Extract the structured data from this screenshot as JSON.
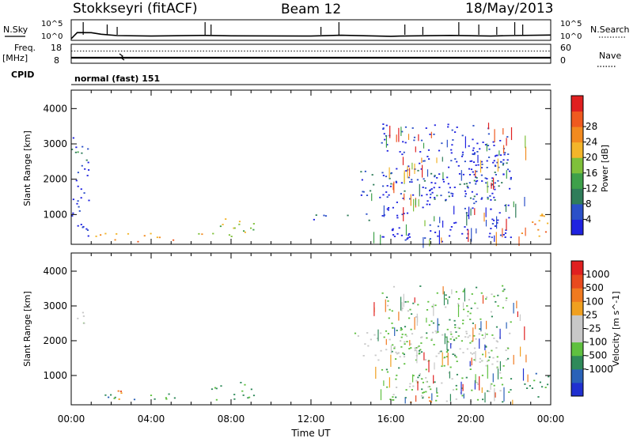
{
  "header": {
    "station": "Stokkseyri (fitACF)",
    "beam": "Beam 12",
    "date": "18/May/2013"
  },
  "side_labels": {
    "nsky": "N.Sky",
    "nsearch": "N.Search",
    "freq": "Freq.",
    "freq_unit": "[MHz]",
    "nave": "Nave",
    "cpid": "CPID",
    "nsky_ticks": [
      "10^5",
      "10^0"
    ],
    "nsearch_ticks": [
      "10^5",
      "10^0"
    ],
    "freq_ticks": [
      "18",
      "8"
    ],
    "nave_ticks": [
      "60",
      "0"
    ]
  },
  "cpid_text": "normal (fast) 151",
  "x_axis": {
    "label": "Time UT",
    "ticks": [
      "00:00",
      "04:00",
      "08:00",
      "12:00",
      "16:00",
      "20:00",
      "00:00"
    ],
    "tick_hours": [
      0,
      4,
      8,
      12,
      16,
      20,
      24
    ]
  },
  "panels": {
    "power_ylabel": "Slant Range [km]",
    "velocity_ylabel": "Slant Range [km]",
    "yticks": [
      "1000",
      "2000",
      "3000",
      "4000"
    ]
  },
  "chart_data": [
    {
      "type": "line",
      "name": "noise-panel",
      "x_range_hours": [
        0,
        24
      ],
      "series": [
        {
          "name": "N.Sky",
          "x": [
            0,
            0.3,
            1.0,
            1.5,
            2.3,
            4.0,
            6.7,
            8.0,
            12.0,
            13.5,
            16.0,
            16.5,
            19.0,
            21.0,
            22.0,
            24.0
          ],
          "y": [
            1,
            60,
            55,
            20,
            8,
            6,
            9,
            7,
            6,
            10,
            5,
            6,
            9,
            6,
            8,
            12
          ]
        }
      ]
    },
    {
      "type": "line",
      "name": "freq-nave-panel",
      "x_range_hours": [
        0,
        24
      ],
      "series": [
        {
          "name": "Freq",
          "x": [
            0,
            24
          ],
          "y": [
            10.5,
            10.5
          ]
        },
        {
          "name": "Nave",
          "x": [
            0,
            24
          ],
          "y": [
            40,
            40
          ]
        }
      ]
    },
    {
      "type": "heatmap",
      "name": "power",
      "x_range_hours": [
        0,
        24
      ],
      "ylim": [
        180,
        4500
      ],
      "colorbar": {
        "label": "Power [dB]",
        "ticks": [
          "4",
          "8",
          "12",
          "16",
          "20",
          "24",
          "28"
        ],
        "colors": [
          "#1f22e0",
          "#2b50c8",
          "#2f7d5a",
          "#3ea04a",
          "#7fc03a",
          "#f3b52a",
          "#f28a1f",
          "#ef5a1f",
          "#e02020"
        ]
      },
      "regions": [
        {
          "t0": 0.0,
          "t1": 0.9,
          "r0": 2450,
          "r1": 2900,
          "level": 2
        },
        {
          "t0": 0.0,
          "t1": 0.9,
          "r0": 250,
          "r1": 3200,
          "level": 0
        },
        {
          "t0": 1.2,
          "t1": 5.5,
          "r0": 250,
          "r1": 500,
          "level": 6
        },
        {
          "t0": 5.8,
          "t1": 6.6,
          "r0": 250,
          "r1": 500,
          "level": 5
        },
        {
          "t0": 7.0,
          "t1": 9.2,
          "r0": 300,
          "r1": 900,
          "level": 4
        },
        {
          "t0": 12.0,
          "t1": 15.0,
          "r0": 850,
          "r1": 1050,
          "level": 1
        },
        {
          "t0": 14.0,
          "t1": 18.5,
          "r0": 1500,
          "r1": 2300,
          "level": 1
        },
        {
          "t0": 16.5,
          "t1": 18.0,
          "r0": 250,
          "r1": 400,
          "level": 1
        },
        {
          "t0": 18.0,
          "t1": 21.5,
          "r0": 1400,
          "r1": 2000,
          "level": 2
        },
        {
          "t0": 15.5,
          "t1": 22.0,
          "r0": 250,
          "r1": 3600,
          "level": 0
        },
        {
          "t0": 20.0,
          "t1": 22.0,
          "r0": 1800,
          "r1": 2900,
          "level": 1
        },
        {
          "t0": 22.5,
          "t1": 24.0,
          "r0": 400,
          "r1": 1100,
          "level": 6
        }
      ]
    },
    {
      "type": "heatmap",
      "name": "velocity",
      "x_range_hours": [
        0,
        24
      ],
      "ylim": [
        180,
        4500
      ],
      "colorbar": {
        "label": "Velocity [m s^-1]",
        "ticks": [
          "1000",
          "500",
          "100",
          "25",
          "-25",
          "-100",
          "-500",
          "-1000"
        ],
        "colors": [
          "#2030d0",
          "#2a62b8",
          "#2f8a5a",
          "#5fc040",
          "#c8c8c8",
          "#c8c8c8",
          "#f0a020",
          "#f07a20",
          "#e84a1e",
          "#e02020"
        ]
      },
      "regions": [
        {
          "t0": 0.0,
          "t1": 0.9,
          "r0": 2450,
          "r1": 2900,
          "level": 4
        },
        {
          "t0": 1.2,
          "t1": 5.5,
          "r0": 250,
          "r1": 500,
          "level": 2
        },
        {
          "t0": 1.2,
          "t1": 2.5,
          "r0": 300,
          "r1": 600,
          "level": 7
        },
        {
          "t0": 7.0,
          "t1": 9.2,
          "r0": 300,
          "r1": 900,
          "level": 2
        },
        {
          "t0": 14.0,
          "t1": 22.0,
          "r0": 1400,
          "r1": 2300,
          "level": 4
        },
        {
          "t0": 16.5,
          "t1": 18.0,
          "r0": 500,
          "r1": 1200,
          "level": 4
        },
        {
          "t0": 16.5,
          "t1": 19.5,
          "r0": 250,
          "r1": 400,
          "level": 7
        },
        {
          "t0": 15.5,
          "t1": 22.0,
          "r0": 250,
          "r1": 3600,
          "level": 3
        },
        {
          "t0": 22.5,
          "t1": 24.0,
          "r0": 400,
          "r1": 1100,
          "level": 2
        }
      ]
    }
  ]
}
